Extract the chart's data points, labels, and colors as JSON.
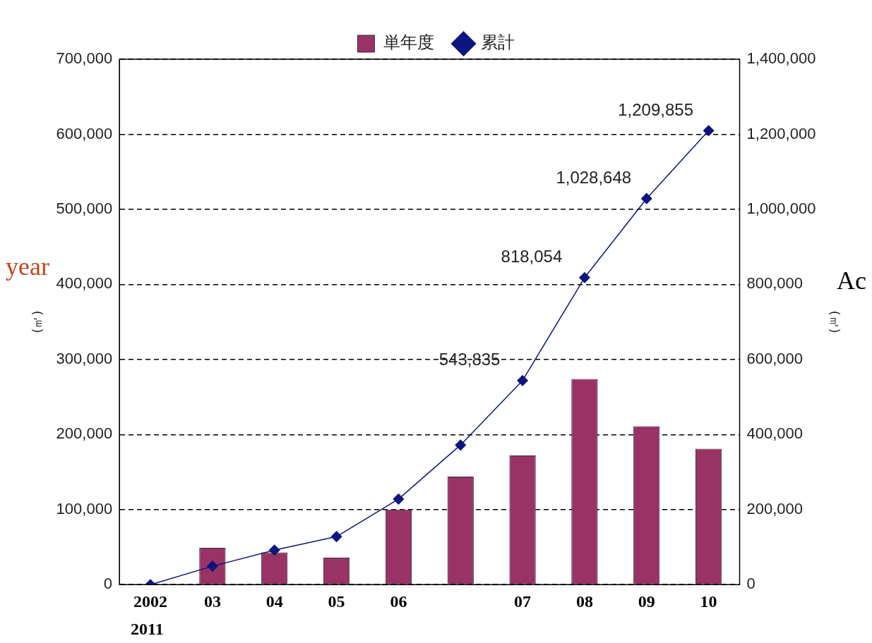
{
  "chart_data": {
    "type": "bar",
    "categories": [
      "2002",
      "03",
      "04",
      "05",
      "06",
      null,
      "07",
      "08",
      "09",
      "10"
    ],
    "series": [
      {
        "name": "単年度",
        "color": "#993366",
        "values": [
          0,
          49000,
          43000,
          36000,
          100000,
          144000,
          172000,
          274000,
          211000,
          181000
        ]
      },
      {
        "name": "累計",
        "type": "line",
        "axis": "y2",
        "color": "#0d1580",
        "marker": "diamond",
        "values": [
          0,
          49000,
          92000,
          128000,
          228000,
          372000,
          543835,
          818054,
          1028648,
          1209855
        ],
        "value_labels": [
          null,
          null,
          null,
          null,
          null,
          null,
          "543,835",
          "818,054",
          "1,028,648",
          "1,209,855"
        ]
      }
    ],
    "ylim": [
      0,
      700000
    ],
    "yticks": [
      0,
      {
        "value": 100000,
        "label": "100,000"
      },
      {
        "value": 200000,
        "label": "200,000"
      },
      {
        "value": 300000,
        "label": "300,000"
      },
      {
        "value": 400000,
        "label": "400,000"
      },
      {
        "value": 500000,
        "label": "500,000"
      },
      {
        "value": 600000,
        "label": "600,000"
      },
      {
        "value": 700000,
        "label": "700,000"
      }
    ],
    "y2lim": [
      0,
      1400000
    ],
    "y2ticks": [
      0,
      {
        "value": 200000,
        "label": "200,000"
      },
      {
        "value": 400000,
        "label": "400,000"
      },
      {
        "value": 600000,
        "label": "600,000"
      },
      {
        "value": 800000,
        "label": "800,000"
      },
      {
        "value": 1000000,
        "label": "1,000,000"
      },
      {
        "value": 1200000,
        "label": "1,200,000"
      },
      {
        "value": 1400000,
        "label": "1,400,000"
      }
    ],
    "ylabel": "(㎡)",
    "y2label": "(㎡)",
    "grid": "y",
    "legend": "top",
    "annotations": [
      "2011",
      "year",
      "Ac"
    ]
  }
}
